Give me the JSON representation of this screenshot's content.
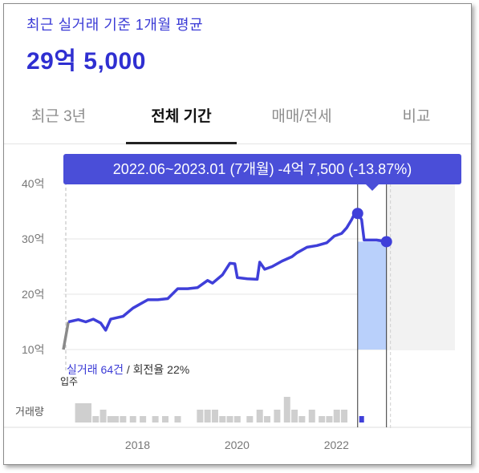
{
  "header": {
    "subtitle": "최근 실거래 기준 1개월 평균",
    "price": "29억 5,000"
  },
  "tabs": [
    {
      "label": "최근 3년",
      "active": false
    },
    {
      "label": "전체 기간",
      "active": true
    },
    {
      "label": "매매/전세",
      "active": false
    },
    {
      "label": "비교",
      "active": false
    }
  ],
  "tooltip": {
    "text": "2022.06~2023.01 (7개월)  -4억 7,500 (-13.87%)"
  },
  "stats": {
    "count_text": "실거래 64건",
    "turnover_text": "/ 회전율 22%"
  },
  "labels": {
    "move_in": "입주",
    "volume": "거래량"
  },
  "colors": {
    "accent": "#3b3bd6",
    "line": "#3f3fd9",
    "highlight": "#b9d0fb",
    "tooltip_bg": "#4a4ed8"
  },
  "chart_data": {
    "type": "line",
    "yunit": "억",
    "yticks": [
      {
        "value": 40,
        "label": "40억"
      },
      {
        "value": 30,
        "label": "30억"
      },
      {
        "value": 20,
        "label": "20억"
      },
      {
        "value": 10,
        "label": "10억"
      }
    ],
    "xticks": [
      {
        "value": 2018,
        "label": "2018"
      },
      {
        "value": 2020,
        "label": "2020"
      },
      {
        "value": 2022,
        "label": "2022"
      }
    ],
    "xlim": [
      2016.5,
      2024.7
    ],
    "ylim": [
      10,
      40
    ],
    "pre_series": [
      [
        2016.5,
        10.0
      ],
      [
        2016.6,
        15.0
      ]
    ],
    "series": [
      [
        2016.6,
        15.0
      ],
      [
        2016.8,
        15.4
      ],
      [
        2016.95,
        15.0
      ],
      [
        2017.1,
        15.5
      ],
      [
        2017.25,
        14.8
      ],
      [
        2017.35,
        13.5
      ],
      [
        2017.45,
        15.5
      ],
      [
        2017.7,
        16.0
      ],
      [
        2017.9,
        17.5
      ],
      [
        2018.0,
        18.0
      ],
      [
        2018.2,
        19.0
      ],
      [
        2018.4,
        19.0
      ],
      [
        2018.6,
        19.2
      ],
      [
        2018.8,
        21.0
      ],
      [
        2019.0,
        21.0
      ],
      [
        2019.2,
        21.2
      ],
      [
        2019.4,
        22.5
      ],
      [
        2019.5,
        22.0
      ],
      [
        2019.7,
        23.5
      ],
      [
        2019.85,
        25.6
      ],
      [
        2019.95,
        25.5
      ],
      [
        2020.0,
        23.0
      ],
      [
        2020.2,
        22.8
      ],
      [
        2020.4,
        22.7
      ],
      [
        2020.45,
        25.8
      ],
      [
        2020.55,
        24.5
      ],
      [
        2020.7,
        25.0
      ],
      [
        2020.9,
        26.0
      ],
      [
        2021.1,
        26.8
      ],
      [
        2021.2,
        27.5
      ],
      [
        2021.4,
        28.5
      ],
      [
        2021.6,
        28.8
      ],
      [
        2021.8,
        29.3
      ],
      [
        2021.95,
        30.5
      ],
      [
        2022.1,
        31.0
      ],
      [
        2022.2,
        32.0
      ],
      [
        2022.3,
        33.5
      ],
      [
        2022.35,
        34.4
      ],
      [
        2022.42,
        34.6
      ],
      [
        2022.5,
        33.5
      ],
      [
        2022.55,
        29.8
      ],
      [
        2022.8,
        29.8
      ],
      [
        2023.0,
        29.5
      ]
    ],
    "highlight_range": [
      2022.42,
      2023.0
    ],
    "endpoints": [
      [
        2022.42,
        34.6
      ],
      [
        2023.0,
        29.5
      ]
    ],
    "volume_scale": [
      0,
      5
    ],
    "volume": [
      [
        2016.8,
        3
      ],
      [
        2016.9,
        3
      ],
      [
        2017.0,
        3
      ],
      [
        2017.15,
        1
      ],
      [
        2017.3,
        2
      ],
      [
        2017.45,
        1
      ],
      [
        2017.55,
        1
      ],
      [
        2017.7,
        1
      ],
      [
        2017.9,
        1
      ],
      [
        2018.1,
        1
      ],
      [
        2018.35,
        1
      ],
      [
        2018.55,
        1
      ],
      [
        2018.8,
        1
      ],
      [
        2019.25,
        2
      ],
      [
        2019.4,
        2
      ],
      [
        2019.55,
        2
      ],
      [
        2019.7,
        1
      ],
      [
        2019.85,
        1
      ],
      [
        2020.0,
        1
      ],
      [
        2020.25,
        1
      ],
      [
        2020.45,
        2
      ],
      [
        2020.6,
        1
      ],
      [
        2020.8,
        2
      ],
      [
        2021.0,
        4
      ],
      [
        2021.15,
        2
      ],
      [
        2021.3,
        1
      ],
      [
        2021.5,
        2
      ],
      [
        2021.7,
        1
      ],
      [
        2021.85,
        1
      ],
      [
        2022.0,
        2
      ],
      [
        2022.15,
        2
      ]
    ],
    "highlight_volume": [
      [
        2022.5,
        1
      ]
    ]
  }
}
